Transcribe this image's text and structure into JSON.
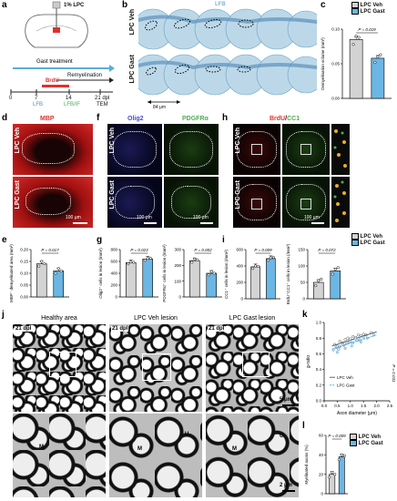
{
  "panels": {
    "a": "a",
    "b": "b",
    "c": "c",
    "d": "d",
    "e": "e",
    "f": "f",
    "g": "g",
    "h": "h",
    "i": "i",
    "j": "j",
    "k": "k",
    "l": "l"
  },
  "panel_a": {
    "injection": "1% LPC",
    "gast_treatment": "Gast treatment",
    "remyelination": "Remyelination",
    "brdu": "BrdU",
    "ticks": [
      "0",
      "7",
      "14",
      "21 dpl"
    ],
    "lfb_1": "LFB",
    "lfb_2": "LFB/IF",
    "tem": "TEM",
    "colors": {
      "gast": "#5aaed8",
      "brdu": "#e0312c",
      "lfb": "#4a90c8",
      "if": "#4caf50"
    }
  },
  "panel_b": {
    "stain": "LFB",
    "rows": [
      "LPC Veh",
      "LPC Gast"
    ],
    "scale": "84 μm"
  },
  "panel_d": {
    "stain": "MBP",
    "rows": [
      "LPC Veh",
      "LPC Gast"
    ],
    "scale": "100 μm"
  },
  "panel_f": {
    "stain_1": "Olig2",
    "stain_2": "PDGFRα",
    "rows": [
      "LPC Veh",
      "LPC Gast"
    ],
    "scale_1": "100 μm",
    "scale_2": "100 μm"
  },
  "panel_h": {
    "stain_1": "BrdU",
    "slash": "/",
    "stain_2": "CC1",
    "rows": [
      "LPC Veh",
      "LPC Gast"
    ],
    "scale": "100 μm"
  },
  "panel_j": {
    "headers": [
      "Healthy area",
      "LPC Veh lesion",
      "LPC Gast lesion"
    ],
    "dpl": "21 dpl",
    "scale_top": "5 μm",
    "scale_bottom": "2 μm",
    "marker_m": "M",
    "marker_u": "U"
  },
  "legends": {
    "veh": "LPC Veh",
    "gast": "LPC Gast",
    "colors": {
      "veh": "#d3d3d3",
      "gast": "#6bb6e4"
    }
  },
  "chart_data": [
    {
      "panel": "c",
      "type": "bar",
      "categories": [
        "LPC Veh",
        "LPC Gast"
      ],
      "values": [
        0.085,
        0.058
      ],
      "ylabel": "Demyelination volume (mm³)",
      "yticks": [
        "0.00",
        "0.05",
        "0.10"
      ],
      "ylim": [
        0,
        0.1
      ],
      "p": "P = 0.019",
      "points": [
        [
          0.078,
          0.09,
          0.088
        ],
        [
          0.052,
          0.06,
          0.063
        ]
      ]
    },
    {
      "panel": "e",
      "type": "bar",
      "categories": [
        "LPC Veh",
        "LPC Gast"
      ],
      "values": [
        0.14,
        0.11
      ],
      "ylabel": "MBP⁻ demyelinated area (mm²)",
      "yticks": [
        "0.00",
        "0.05",
        "0.10",
        "0.15",
        "0.20"
      ],
      "ylim": [
        0,
        0.2
      ],
      "p": "P = 0.017",
      "points": [
        [
          0.13,
          0.15,
          0.14
        ],
        [
          0.1,
          0.12,
          0.11
        ]
      ]
    },
    {
      "panel": "g1",
      "type": "bar",
      "categories": [
        "LPC Veh",
        "LPC Gast"
      ],
      "values": [
        580,
        640
      ],
      "ylabel": "Olig2⁺ cells in lesion (/mm²)",
      "yticks": [
        "0",
        "200",
        "400",
        "600",
        "800"
      ],
      "ylim": [
        0,
        800
      ],
      "p": "P = 0.023",
      "points": [
        [
          560,
          590,
          585
        ],
        [
          620,
          650,
          655
        ]
      ]
    },
    {
      "panel": "g2",
      "type": "bar",
      "categories": [
        "LPC Veh",
        "LPC Gast"
      ],
      "values": [
        230,
        150
      ],
      "ylabel": "PDGFRα⁺ cells in lesion (/mm²)",
      "yticks": [
        "0",
        "100",
        "200",
        "300"
      ],
      "ylim": [
        0,
        300
      ],
      "p": "P = 0.002",
      "points": [
        [
          220,
          240,
          235
        ],
        [
          140,
          160,
          150
        ]
      ]
    },
    {
      "panel": "i1",
      "type": "bar",
      "categories": [
        "LPC Veh",
        "LPC Gast"
      ],
      "values": [
        390,
        490
      ],
      "ylabel": "CC1⁺ cells in lesion (/mm²)",
      "yticks": [
        "0",
        "200",
        "400",
        "600"
      ],
      "ylim": [
        0,
        600
      ],
      "p": "P = 0.009",
      "points": [
        [
          370,
          400,
          395
        ],
        [
          470,
          500,
          505
        ]
      ]
    },
    {
      "panel": "i2",
      "type": "bar",
      "categories": [
        "LPC Veh",
        "LPC Gast"
      ],
      "values": [
        50,
        85
      ],
      "ylabel": "BrdU⁺CC1⁺ cells in lesion (/mm²)",
      "yticks": [
        "0",
        "50",
        "100",
        "150"
      ],
      "ylim": [
        0,
        150
      ],
      "p": "P = 0.072",
      "points": [
        [
          40,
          55,
          60
        ],
        [
          75,
          90,
          95
        ]
      ]
    },
    {
      "panel": "k",
      "type": "scatter",
      "xlabel": "Axon diameter (μm)",
      "ylabel": "g-ratio",
      "xticks": [
        "0.0",
        "0.5",
        "1.0",
        "1.5",
        "2.0",
        "2.5"
      ],
      "yticks": [
        "0.0",
        "0.2",
        "0.4",
        "0.6",
        "0.8",
        "1.0"
      ],
      "xlim": [
        0,
        2.5
      ],
      "ylim": [
        0,
        1.0
      ],
      "p": "P = 0.041",
      "series": [
        {
          "name": "LPC Veh",
          "fit": [
            [
              0.3,
              0.7
            ],
            [
              2.0,
              0.88
            ]
          ],
          "points": [
            [
              0.4,
              0.72
            ],
            [
              0.5,
              0.7
            ],
            [
              0.6,
              0.76
            ],
            [
              0.7,
              0.74
            ],
            [
              0.8,
              0.78
            ],
            [
              0.9,
              0.8
            ],
            [
              1.0,
              0.79
            ],
            [
              1.1,
              0.82
            ],
            [
              1.2,
              0.81
            ],
            [
              1.3,
              0.84
            ],
            [
              1.4,
              0.83
            ],
            [
              1.5,
              0.85
            ],
            [
              1.6,
              0.84
            ],
            [
              1.8,
              0.87
            ],
            [
              0.55,
              0.66
            ],
            [
              0.75,
              0.71
            ],
            [
              0.95,
              0.75
            ],
            [
              1.25,
              0.77
            ]
          ]
        },
        {
          "name": "LPC Gast",
          "fit": [
            [
              0.3,
              0.66
            ],
            [
              2.0,
              0.84
            ]
          ],
          "points": [
            [
              0.35,
              0.65
            ],
            [
              0.45,
              0.68
            ],
            [
              0.6,
              0.69
            ],
            [
              0.7,
              0.72
            ],
            [
              0.85,
              0.73
            ],
            [
              1.0,
              0.76
            ],
            [
              1.1,
              0.74
            ],
            [
              1.2,
              0.79
            ],
            [
              1.35,
              0.78
            ],
            [
              1.5,
              0.81
            ],
            [
              1.65,
              0.8
            ],
            [
              1.9,
              0.84
            ],
            [
              0.5,
              0.62
            ],
            [
              0.8,
              0.67
            ],
            [
              1.05,
              0.7
            ],
            [
              1.4,
              0.75
            ]
          ]
        }
      ]
    },
    {
      "panel": "l",
      "type": "bar",
      "categories": [
        "LPC Veh",
        "LPC Gast"
      ],
      "values": [
        20,
        38
      ],
      "ylabel": "Myelinated axons (%)",
      "yticks": [
        "0",
        "20",
        "40",
        "60"
      ],
      "ylim": [
        0,
        60
      ],
      "p": "P = 0.009",
      "points": [
        [
          17,
          22,
          20
        ],
        [
          35,
          40,
          39
        ]
      ]
    }
  ]
}
